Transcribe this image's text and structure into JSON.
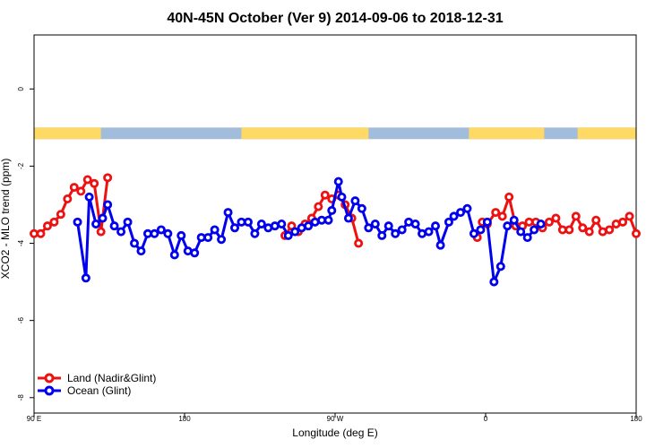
{
  "chart_data": {
    "type": "line",
    "title": "40N-45N October (Ver 9)   2014-09-06 to 2018-12-31",
    "xlabel": "Longitude (deg E)",
    "ylabel": "XCO2 - MLO trend (ppm)",
    "xlim": [
      90,
      450
    ],
    "ylim": [
      -8.4,
      1.4
    ],
    "x_ticks": [
      {
        "value": 90,
        "label": "90 E"
      },
      {
        "value": 180,
        "label": "180"
      },
      {
        "value": 270,
        "label": "90 W"
      },
      {
        "value": 360,
        "label": "0"
      },
      {
        "value": 450,
        "label": "180"
      }
    ],
    "y_ticks": [
      {
        "value": 0,
        "label": "0"
      },
      {
        "value": -2,
        "label": "-2"
      },
      {
        "value": -4,
        "label": "-4"
      },
      {
        "value": -6,
        "label": "-6"
      },
      {
        "value": -8,
        "label": "-8"
      }
    ],
    "grid": false,
    "legend_position": "bottom-left",
    "series": [
      {
        "name": "Land (Nadir&Glint)",
        "color": "#ee1111",
        "segments": [
          [
            [
              90,
              -3.75
            ],
            [
              94,
              -3.75
            ],
            [
              98,
              -3.55
            ],
            [
              102,
              -3.45
            ],
            [
              106,
              -3.25
            ],
            [
              110,
              -2.85
            ],
            [
              114,
              -2.55
            ],
            [
              118,
              -2.65
            ],
            [
              122,
              -2.35
            ],
            [
              126,
              -2.45
            ],
            [
              130,
              -3.7
            ],
            [
              134,
              -2.3
            ]
          ],
          [
            [
              240,
              -3.8
            ],
            [
              244,
              -3.55
            ],
            [
              248,
              -3.7
            ],
            [
              252,
              -3.5
            ],
            [
              256,
              -3.35
            ],
            [
              260,
              -3.05
            ],
            [
              264,
              -2.75
            ],
            [
              268,
              -2.85
            ],
            [
              272,
              -2.75
            ],
            [
              276,
              -3.0
            ],
            [
              280,
              -3.35
            ],
            [
              284,
              -4.0
            ]
          ],
          [
            [
              355,
              -3.85
            ],
            [
              358,
              -3.45
            ],
            [
              361,
              -3.5
            ],
            [
              366,
              -3.2
            ],
            [
              370,
              -3.3
            ],
            [
              374,
              -2.8
            ],
            [
              378,
              -3.55
            ],
            [
              382,
              -3.55
            ],
            [
              386,
              -3.45
            ],
            [
              390,
              -3.45
            ],
            [
              394,
              -3.6
            ],
            [
              398,
              -3.45
            ],
            [
              402,
              -3.35
            ],
            [
              406,
              -3.65
            ],
            [
              410,
              -3.65
            ],
            [
              414,
              -3.3
            ],
            [
              418,
              -3.6
            ],
            [
              422,
              -3.7
            ],
            [
              426,
              -3.4
            ],
            [
              430,
              -3.7
            ],
            [
              434,
              -3.65
            ],
            [
              438,
              -3.5
            ],
            [
              442,
              -3.45
            ],
            [
              446,
              -3.3
            ],
            [
              450,
              -3.75
            ],
            [
              454,
              -3.75
            ],
            [
              458,
              -3.55
            ],
            [
              462,
              -3.45
            ],
            [
              466,
              -3.25
            ],
            [
              470,
              -2.85
            ],
            [
              474,
              -2.55
            ],
            [
              478,
              -2.65
            ],
            [
              482,
              -2.35
            ],
            [
              486,
              -2.45
            ],
            [
              490,
              -3.7
            ],
            [
              494,
              -2.3
            ]
          ]
        ]
      },
      {
        "name": "Ocean (Glint)",
        "color": "#0000ee",
        "segments": [
          [
            [
              116,
              -3.45
            ],
            [
              121,
              -4.9
            ],
            [
              123,
              -2.8
            ],
            [
              127,
              -3.5
            ],
            [
              131,
              -3.35
            ],
            [
              134,
              -3.0
            ],
            [
              138,
              -3.55
            ],
            [
              142,
              -3.7
            ],
            [
              146,
              -3.45
            ],
            [
              150,
              -4.0
            ],
            [
              154,
              -4.2
            ],
            [
              158,
              -3.75
            ],
            [
              162,
              -3.75
            ],
            [
              166,
              -3.65
            ],
            [
              170,
              -3.75
            ],
            [
              174,
              -4.3
            ],
            [
              178,
              -3.8
            ],
            [
              182,
              -4.2
            ],
            [
              186,
              -4.25
            ],
            [
              190,
              -3.85
            ],
            [
              194,
              -3.85
            ],
            [
              198,
              -3.65
            ],
            [
              202,
              -3.9
            ],
            [
              206,
              -3.2
            ],
            [
              210,
              -3.6
            ],
            [
              214,
              -3.45
            ],
            [
              218,
              -3.45
            ],
            [
              222,
              -3.75
            ],
            [
              226,
              -3.5
            ],
            [
              230,
              -3.6
            ],
            [
              234,
              -3.55
            ],
            [
              238,
              -3.5
            ],
            [
              242,
              -3.8
            ],
            [
              246,
              -3.7
            ],
            [
              250,
              -3.6
            ],
            [
              254,
              -3.55
            ],
            [
              258,
              -3.45
            ],
            [
              262,
              -3.4
            ],
            [
              266,
              -3.4
            ],
            [
              268,
              -3.15
            ],
            [
              272,
              -2.4
            ],
            [
              274,
              -2.8
            ],
            [
              278,
              -3.35
            ],
            [
              282,
              -2.9
            ],
            [
              286,
              -3.1
            ],
            [
              290,
              -3.6
            ],
            [
              294,
              -3.5
            ],
            [
              298,
              -3.8
            ],
            [
              302,
              -3.55
            ],
            [
              306,
              -3.75
            ],
            [
              310,
              -3.65
            ],
            [
              314,
              -3.45
            ],
            [
              318,
              -3.5
            ],
            [
              322,
              -3.75
            ],
            [
              326,
              -3.7
            ],
            [
              330,
              -3.55
            ],
            [
              333,
              -4.05
            ],
            [
              338,
              -3.45
            ],
            [
              341,
              -3.3
            ],
            [
              345,
              -3.2
            ],
            [
              349,
              -3.1
            ],
            [
              353,
              -3.75
            ],
            [
              357,
              -3.65
            ],
            [
              361,
              -3.45
            ],
            [
              365,
              -5.0
            ],
            [
              369,
              -4.6
            ],
            [
              373,
              -3.55
            ],
            [
              377,
              -3.4
            ],
            [
              381,
              -3.7
            ],
            [
              385,
              -3.85
            ],
            [
              389,
              -3.65
            ],
            [
              393,
              -3.5
            ]
          ]
        ]
      }
    ],
    "surface_strip": {
      "y_range": [
        -1.3,
        -1.0
      ],
      "land_color": "#ffd966",
      "ocean_color": "#a2bcdc",
      "land_ranges": [
        [
          90,
          130
        ],
        [
          214,
          290
        ],
        [
          350,
          395
        ],
        [
          415,
          452
        ]
      ]
    }
  },
  "legend": {
    "items": [
      {
        "label": "Land (Nadir&Glint)",
        "color": "#ee1111"
      },
      {
        "label": "Ocean (Glint)",
        "color": "#0000ee"
      }
    ]
  }
}
